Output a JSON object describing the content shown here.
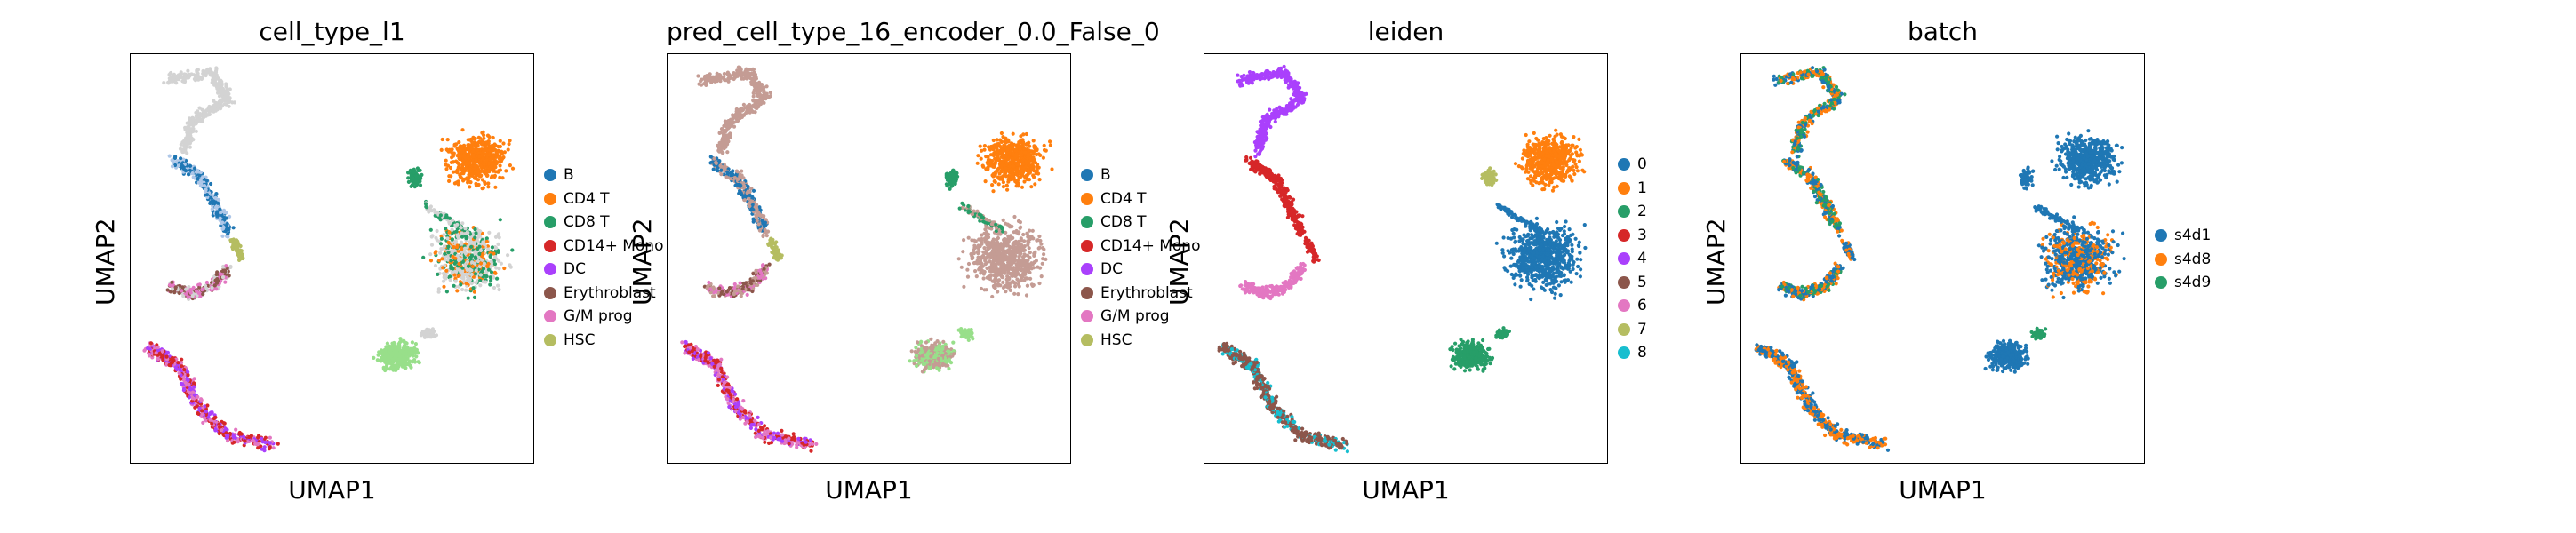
{
  "figure": {
    "xlabel": "UMAP1",
    "ylabel": "UMAP2"
  },
  "chart_data": [
    {
      "type": "scatter",
      "title": "cell_type_l1",
      "xlabel": "UMAP1",
      "ylabel": "UMAP2",
      "legend_placement": "right",
      "categories": [
        {
          "name": "B",
          "color": "#1f77b4"
        },
        {
          "name": "CD4 T",
          "color": "#ff7f0e"
        },
        {
          "name": "CD8 T",
          "color": "#279e68"
        },
        {
          "name": "CD14+ Mono",
          "color": "#d62728"
        },
        {
          "name": "DC",
          "color": "#aa40fc"
        },
        {
          "name": "Erythroblast",
          "color": "#8c564b"
        },
        {
          "name": "G/M prog",
          "color": "#e377c2"
        },
        {
          "name": "HSC",
          "color": "#b5bd61"
        }
      ]
    },
    {
      "type": "scatter",
      "title": "pred_cell_type_16_encoder_0.0_False_0",
      "xlabel": "UMAP1",
      "ylabel": "UMAP2",
      "legend_placement": "right",
      "categories": [
        {
          "name": "B",
          "color": "#1f77b4"
        },
        {
          "name": "CD4 T",
          "color": "#ff7f0e"
        },
        {
          "name": "CD8 T",
          "color": "#279e68"
        },
        {
          "name": "CD14+ Mono",
          "color": "#d62728"
        },
        {
          "name": "DC",
          "color": "#aa40fc"
        },
        {
          "name": "Erythroblast",
          "color": "#8c564b"
        },
        {
          "name": "G/M prog",
          "color": "#e377c2"
        },
        {
          "name": "HSC",
          "color": "#b5bd61"
        }
      ]
    },
    {
      "type": "scatter",
      "title": "leiden",
      "xlabel": "UMAP1",
      "ylabel": "UMAP2",
      "legend_placement": "right",
      "categories": [
        {
          "name": "0",
          "color": "#1f77b4"
        },
        {
          "name": "1",
          "color": "#ff7f0e"
        },
        {
          "name": "2",
          "color": "#279e68"
        },
        {
          "name": "3",
          "color": "#d62728"
        },
        {
          "name": "4",
          "color": "#aa40fc"
        },
        {
          "name": "5",
          "color": "#8c564b"
        },
        {
          "name": "6",
          "color": "#e377c2"
        },
        {
          "name": "7",
          "color": "#b5bd61"
        },
        {
          "name": "8",
          "color": "#17becf"
        }
      ]
    },
    {
      "type": "scatter",
      "title": "batch",
      "xlabel": "UMAP1",
      "ylabel": "UMAP2",
      "legend_placement": "right",
      "categories": [
        {
          "name": "s4d1",
          "color": "#1f77b4"
        },
        {
          "name": "s4d8",
          "color": "#ff7f0e"
        },
        {
          "name": "s4d9",
          "color": "#279e68"
        }
      ]
    }
  ],
  "colors": {
    "unlabeled": "#d3d3d3",
    "pred_unlabeled": "#c49c94",
    "light_blue": "#aec7e8",
    "light_green": "#98df8a"
  }
}
